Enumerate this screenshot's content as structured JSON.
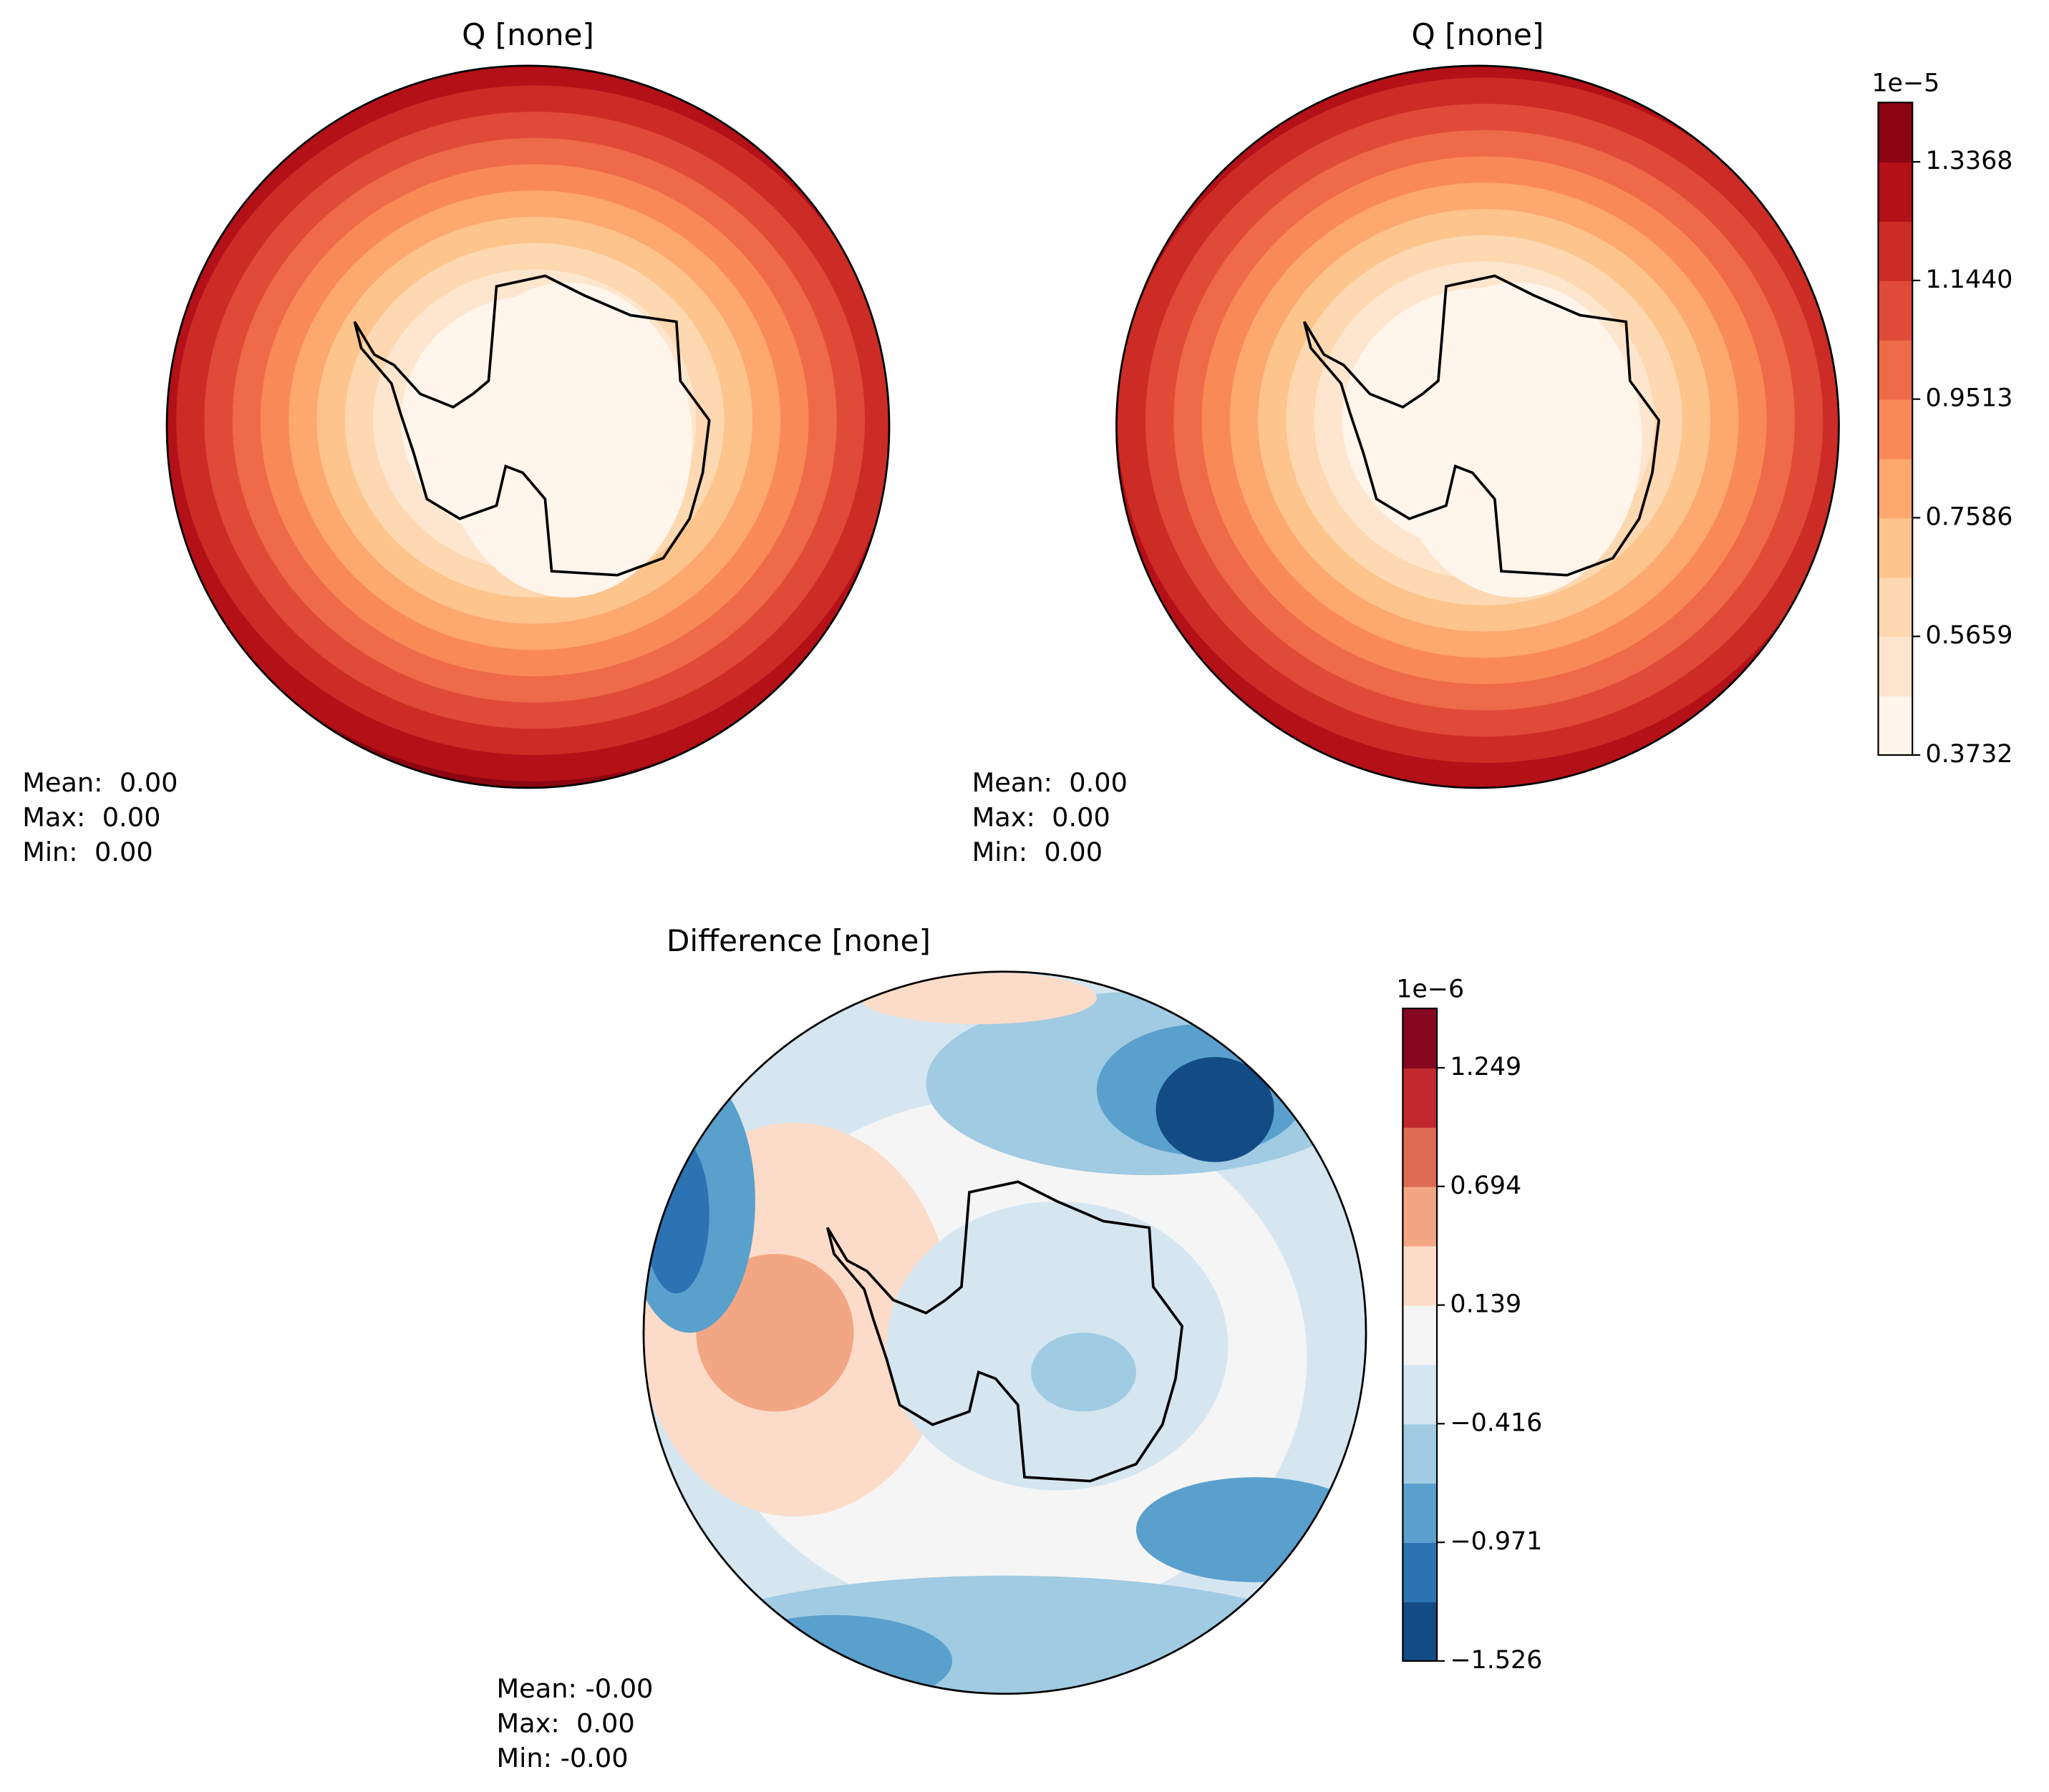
{
  "panels": [
    {
      "title": "Q [none]",
      "stats": [
        "Mean:  0.00",
        "Max:  0.00",
        "Min:  0.00"
      ]
    },
    {
      "title": "Q [none]",
      "stats": [
        "Mean:  0.00",
        "Max:  0.00",
        "Min:  0.00"
      ],
      "colorbar": {
        "offset": "1e−5",
        "ticks": [
          "0.3732",
          "0.5659",
          "0.7586",
          "0.9513",
          "1.1440",
          "1.3368"
        ]
      }
    },
    {
      "title": "Difference [none]",
      "stats": [
        "Mean: -0.00",
        "Max:  0.00",
        "Min: -0.00"
      ],
      "colorbar": {
        "offset": "1e−6",
        "ticks": [
          "−1.526",
          "−0.971",
          "−0.416",
          "0.139",
          "0.694",
          "1.249"
        ]
      }
    }
  ]
}
